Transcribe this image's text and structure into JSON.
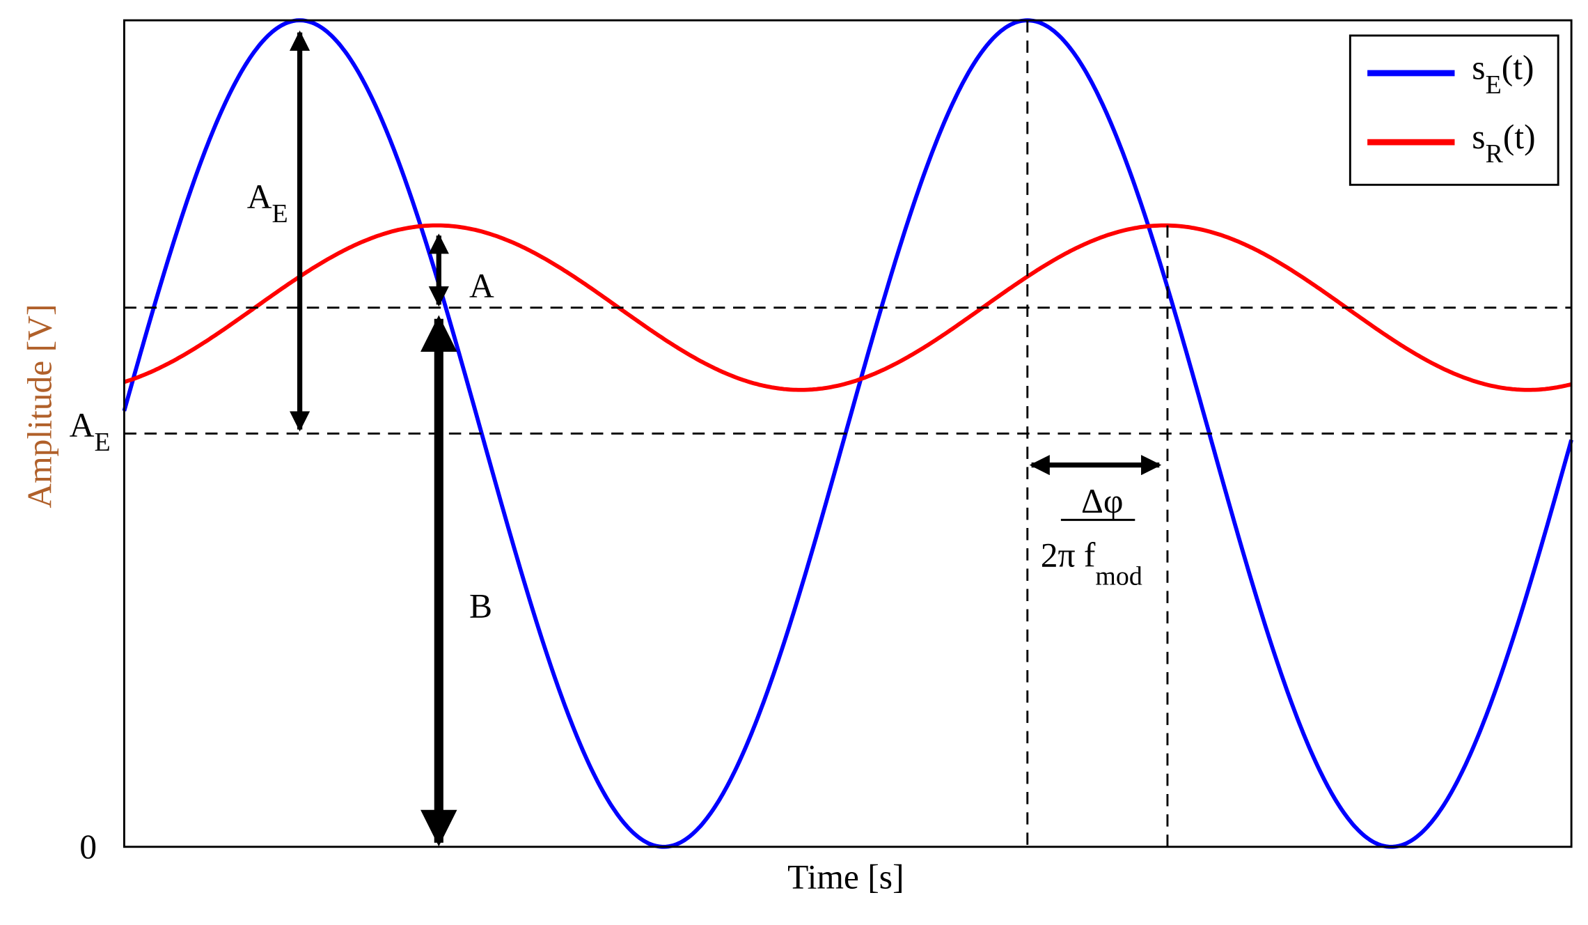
{
  "axes": {
    "x_label": "Time [s]",
    "y_label": "Amplitude [V]",
    "y_tick_zero": "0",
    "y_tick_ae": {
      "main": "A",
      "sub": "E"
    }
  },
  "legend": [
    {
      "main": "s",
      "sub": "E",
      "suffix": "(t)"
    },
    {
      "main": "s",
      "sub": "R",
      "suffix": "(t)"
    }
  ],
  "annotations": {
    "ae": {
      "main": "A",
      "sub": "E"
    },
    "a": "A",
    "b": "B",
    "phase": {
      "numerator": "Δφ",
      "denominator": "2π f",
      "denominator_sub": "mod"
    }
  }
}
